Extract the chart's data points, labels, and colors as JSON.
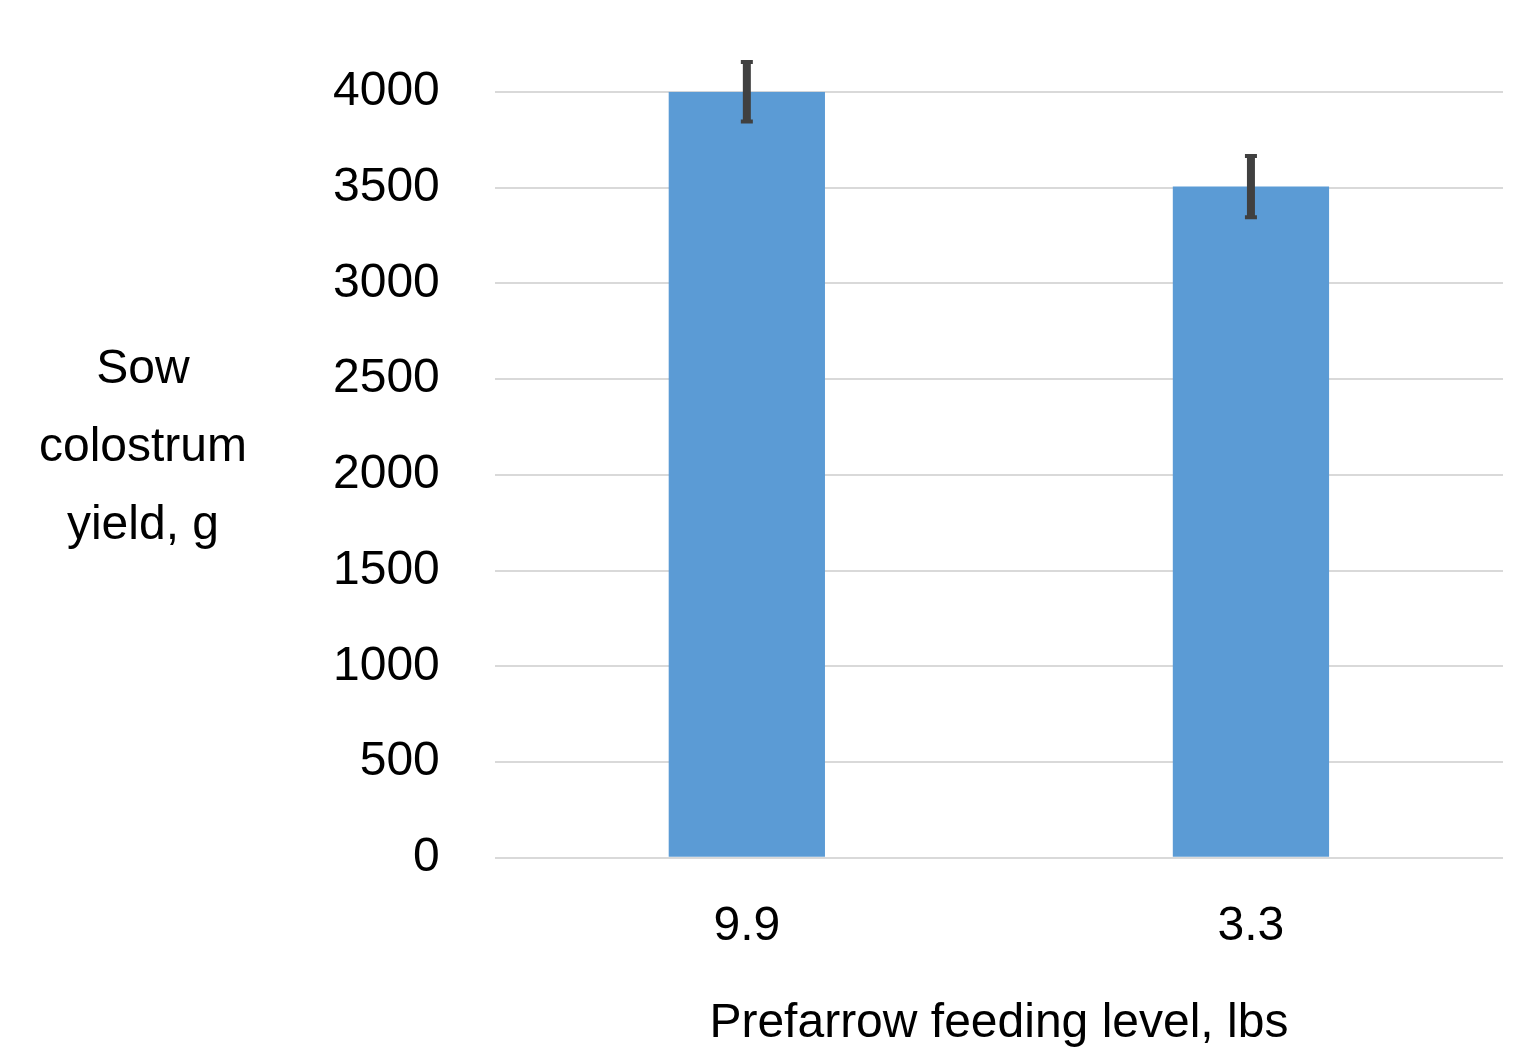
{
  "chart_data": {
    "type": "bar",
    "xlabel": "Prefarrow feeding level, lbs",
    "ylabel": "Sow colostrum yield, g",
    "categories": [
      "9.9",
      "3.3"
    ],
    "series": [
      {
        "color": "#5b9bd5",
        "values": [
          4000,
          3505
        ],
        "errors": [
          155,
          160
        ]
      }
    ],
    "ylim": [
      0,
      4000
    ],
    "yticks": [
      0,
      500,
      1000,
      1500,
      2000,
      2500,
      3000,
      3500,
      4000
    ],
    "grid": "y",
    "legend": false
  }
}
